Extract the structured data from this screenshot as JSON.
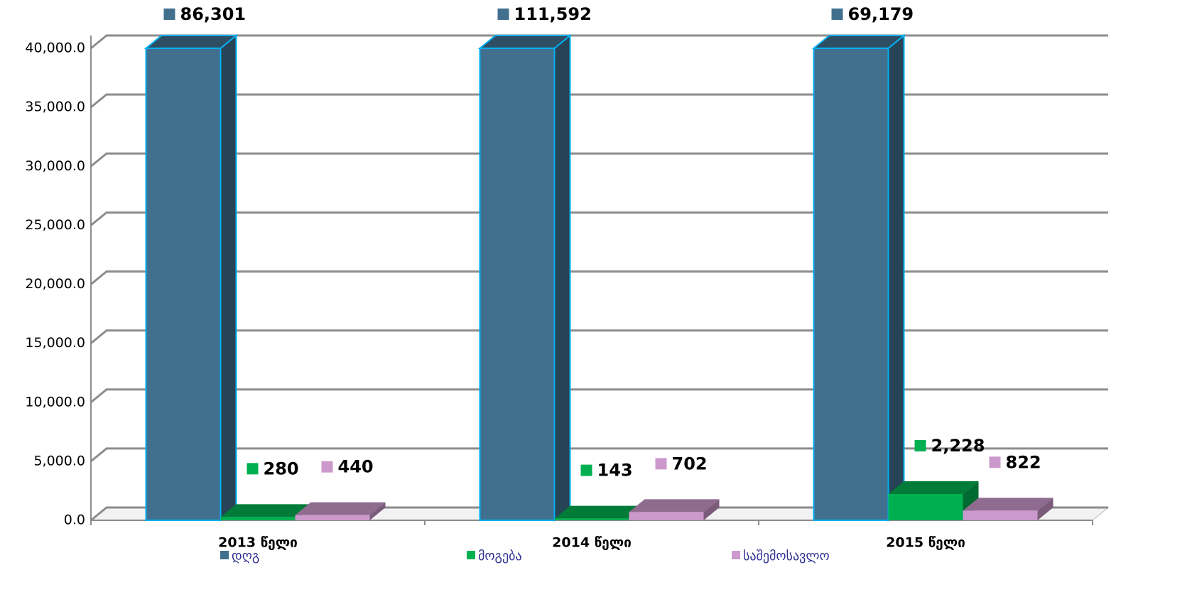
{
  "chart_data": {
    "type": "bar3d",
    "categories": [
      "2013 წელი",
      "2014 წელი",
      "2015 წელი"
    ],
    "series": [
      {
        "name": "დღგ",
        "color": "#41708f",
        "values": [
          86301,
          111592,
          69179
        ],
        "value_labels": [
          "86,301",
          "111,592",
          "69,179"
        ]
      },
      {
        "name": "მოგება",
        "color": "#00b050",
        "values": [
          280,
          143,
          2228
        ],
        "value_labels": [
          "280",
          "143",
          "2,228"
        ]
      },
      {
        "name": "საშემოსავლო",
        "color": "#cc99cc",
        "values": [
          440,
          702,
          822
        ],
        "value_labels": [
          "440",
          "702",
          "822"
        ]
      }
    ],
    "ylim": [
      0,
      40000
    ],
    "yticks": [
      {
        "value": 0,
        "label": "0.0"
      },
      {
        "value": 5000,
        "label": "5,000.0"
      },
      {
        "value": 10000,
        "label": "10,000.0"
      },
      {
        "value": 15000,
        "label": "15,000.0"
      },
      {
        "value": 20000,
        "label": "20,000.0"
      },
      {
        "value": 25000,
        "label": "25,000.0"
      },
      {
        "value": 30000,
        "label": "30,000.0"
      },
      {
        "value": 35000,
        "label": "35,000.0"
      },
      {
        "value": 40000,
        "label": "40,000.0"
      }
    ],
    "grid": true,
    "legend": "bottom"
  }
}
